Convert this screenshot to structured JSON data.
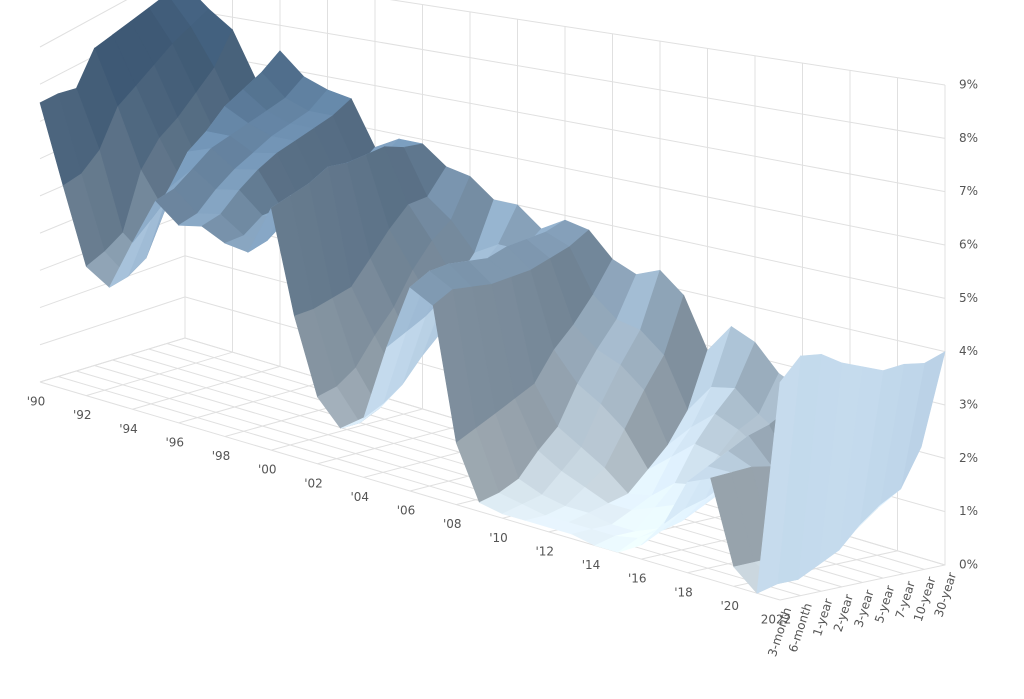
{
  "chart_data": {
    "type": "surface",
    "x": [
      1990,
      1991,
      1992,
      1993,
      1994,
      1995,
      1996,
      1997,
      1998,
      1999,
      2000,
      2001,
      2002,
      2003,
      2004,
      2005,
      2006,
      2007,
      2008,
      2009,
      2010,
      2011,
      2012,
      2013,
      2014,
      2015,
      2016,
      2017,
      2018,
      2019,
      2020,
      2021,
      2022
    ],
    "categories": [
      "3-month",
      "6-month",
      "1-year",
      "2-year",
      "3-year",
      "5-year",
      "7-year",
      "10-year",
      "30-year"
    ],
    "values": [
      [
        7.5,
        7.5,
        7.4,
        8.2,
        8.3,
        8.4,
        8.5,
        8.6,
        8.6
      ],
      [
        5.4,
        5.5,
        5.9,
        6.8,
        7.1,
        7.4,
        7.7,
        7.9,
        8.1
      ],
      [
        3.4,
        3.6,
        3.9,
        5.3,
        5.9,
        6.2,
        6.6,
        7.0,
        7.7
      ],
      [
        3.0,
        3.1,
        3.4,
        4.4,
        4.9,
        5.1,
        5.5,
        5.9,
        6.6
      ],
      [
        4.3,
        4.7,
        5.3,
        6.0,
        6.3,
        6.7,
        6.9,
        7.1,
        7.4
      ],
      [
        5.5,
        5.6,
        5.9,
        6.2,
        6.3,
        6.4,
        6.5,
        6.6,
        6.9
      ],
      [
        5.0,
        5.1,
        5.5,
        5.8,
        6.0,
        6.2,
        6.3,
        6.4,
        6.7
      ],
      [
        5.1,
        5.2,
        5.6,
        5.9,
        6.1,
        6.2,
        6.3,
        6.4,
        6.6
      ],
      [
        4.8,
        4.8,
        5.1,
        5.1,
        5.1,
        5.2,
        5.3,
        5.3,
        5.6
      ],
      [
        4.7,
        4.8,
        5.1,
        5.4,
        5.5,
        5.6,
        5.8,
        5.6,
        5.9
      ],
      [
        5.9,
        6.0,
        6.1,
        6.3,
        6.2,
        6.2,
        6.2,
        6.0,
        5.9
      ],
      [
        3.4,
        3.4,
        3.5,
        3.6,
        4.1,
        4.6,
        5.0,
        5.0,
        5.5
      ],
      [
        1.6,
        1.7,
        2.0,
        2.6,
        3.1,
        3.8,
        4.3,
        4.6,
        5.4
      ],
      [
        1.0,
        1.0,
        1.2,
        1.7,
        2.1,
        3.0,
        3.5,
        4.0,
        5.0
      ],
      [
        1.4,
        1.6,
        1.9,
        2.4,
        2.8,
        3.4,
        3.9,
        4.3,
        5.0
      ],
      [
        3.2,
        3.4,
        3.6,
        3.9,
        4.0,
        4.1,
        4.2,
        4.3,
        4.6
      ],
      [
        4.7,
        4.9,
        4.9,
        4.8,
        4.7,
        4.8,
        4.8,
        4.8,
        4.9
      ],
      [
        4.4,
        4.6,
        4.5,
        4.4,
        4.4,
        4.4,
        4.5,
        4.6,
        4.8
      ],
      [
        1.4,
        1.6,
        1.8,
        2.0,
        2.2,
        2.8,
        3.2,
        3.7,
        4.3
      ],
      [
        0.2,
        0.3,
        0.5,
        1.0,
        1.4,
        2.2,
        2.8,
        3.3,
        4.1
      ],
      [
        0.1,
        0.2,
        0.3,
        0.7,
        1.1,
        1.9,
        2.6,
        3.2,
        4.3
      ],
      [
        0.1,
        0.1,
        0.2,
        0.5,
        0.8,
        1.5,
        2.2,
        2.8,
        3.9
      ],
      [
        0.1,
        0.1,
        0.2,
        0.3,
        0.4,
        0.8,
        1.2,
        1.8,
        2.9
      ],
      [
        0.1,
        0.1,
        0.1,
        0.3,
        0.5,
        1.2,
        1.7,
        2.4,
        3.5
      ],
      [
        0.0,
        0.1,
        0.1,
        0.5,
        0.9,
        1.6,
        2.1,
        2.5,
        3.3
      ],
      [
        0.0,
        0.2,
        0.3,
        0.7,
        1.0,
        1.5,
        1.9,
        2.1,
        2.8
      ],
      [
        0.3,
        0.5,
        0.6,
        0.8,
        1.0,
        1.3,
        1.6,
        1.8,
        2.6
      ],
      [
        0.9,
        1.1,
        1.2,
        1.4,
        1.6,
        1.9,
        2.2,
        2.3,
        2.9
      ],
      [
        1.9,
        2.1,
        2.3,
        2.5,
        2.6,
        2.8,
        2.9,
        2.9,
        3.1
      ],
      [
        2.1,
        2.1,
        2.1,
        2.0,
        1.9,
        2.0,
        2.1,
        2.1,
        2.6
      ],
      [
        0.4,
        0.4,
        0.4,
        0.4,
        0.4,
        0.5,
        0.6,
        0.9,
        1.6
      ],
      [
        0.0,
        0.1,
        0.1,
        0.3,
        0.5,
        0.9,
        1.2,
        1.4,
        2.1
      ],
      [
        4.4,
        4.8,
        4.7,
        4.4,
        4.2,
        4.0,
        4.0,
        3.9,
        4.0
      ]
    ],
    "xlim": [
      1990,
      2022
    ],
    "xticks": [
      {
        "value": 1990,
        "label": "'90"
      },
      {
        "value": 1992,
        "label": "'92"
      },
      {
        "value": 1994,
        "label": "'94"
      },
      {
        "value": 1996,
        "label": "'96"
      },
      {
        "value": 1998,
        "label": "'98"
      },
      {
        "value": 2000,
        "label": "'00"
      },
      {
        "value": 2002,
        "label": "'02"
      },
      {
        "value": 2004,
        "label": "'04"
      },
      {
        "value": 2006,
        "label": "'06"
      },
      {
        "value": 2008,
        "label": "'08"
      },
      {
        "value": 2010,
        "label": "'10"
      },
      {
        "value": 2012,
        "label": "'12"
      },
      {
        "value": 2014,
        "label": "'14"
      },
      {
        "value": 2016,
        "label": "'16"
      },
      {
        "value": 2018,
        "label": "'18"
      },
      {
        "value": 2020,
        "label": "'20"
      },
      2022
    ],
    "zlim": [
      0,
      9
    ],
    "zticks": [
      {
        "value": 0,
        "label": "0%"
      },
      {
        "value": 1,
        "label": "1%"
      },
      {
        "value": 2,
        "label": "2%"
      },
      {
        "value": 3,
        "label": "3%"
      },
      {
        "value": 4,
        "label": "4%"
      },
      {
        "value": 5,
        "label": "5%"
      },
      {
        "value": 6,
        "label": "6%"
      },
      {
        "value": 7,
        "label": "7%"
      },
      {
        "value": 8,
        "label": "8%"
      },
      {
        "value": 9,
        "label": "9%"
      }
    ],
    "grid": true,
    "color_low": "#eaf7ff",
    "color_high": "#567ca2"
  }
}
